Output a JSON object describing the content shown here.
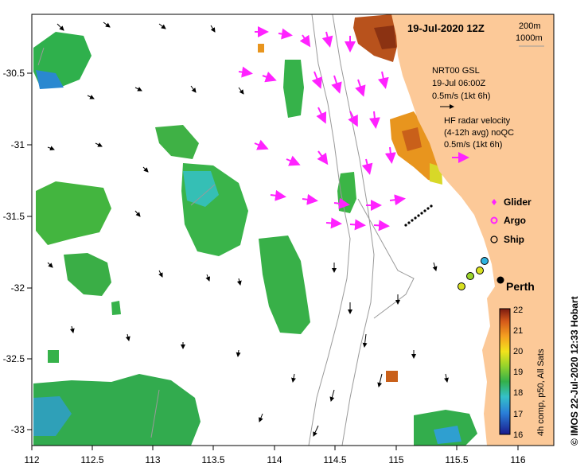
{
  "title": "19-Jul-2020 12Z",
  "isobath_legend": {
    "depth1": "200m",
    "depth2": "1000m"
  },
  "gsl_legend": {
    "line1": "NRT00 GSL",
    "line2": "19-Jul 06:00Z",
    "line3": "0.5m/s (1kt 6h)"
  },
  "radar_legend": {
    "line1": "HF radar velocity",
    "line2": "(4-12h avg) noQC",
    "line3": "0.5m/s (1kt 6h)"
  },
  "symbol_legend": {
    "glider": "Glider",
    "argo": "Argo",
    "ship": "Ship"
  },
  "city_label": "Perth",
  "colorbar": {
    "label": "4h comp, p50, All Sats",
    "ticks": [
      "16",
      "17",
      "18",
      "19",
      "20",
      "21",
      "22"
    ],
    "min": 16,
    "max": 22
  },
  "side_credit": "© IMOS 22-Jul-2020 12:33 Hobart",
  "x_ticks": [
    "112",
    "112.5",
    "113",
    "113.5",
    "114",
    "114.5",
    "115",
    "115.5",
    "116"
  ],
  "y_ticks": [
    "-30.5",
    "-31",
    "-31.5",
    "-32",
    "-32.5",
    "-33"
  ],
  "colors": {
    "land": "#fcc998",
    "radar_vectors": "#ff22ff",
    "model_vectors": "#000000",
    "isobath": "#9a9a9a",
    "warm_sst": "#b3501a",
    "cool_sst": "#2fb04c"
  }
}
